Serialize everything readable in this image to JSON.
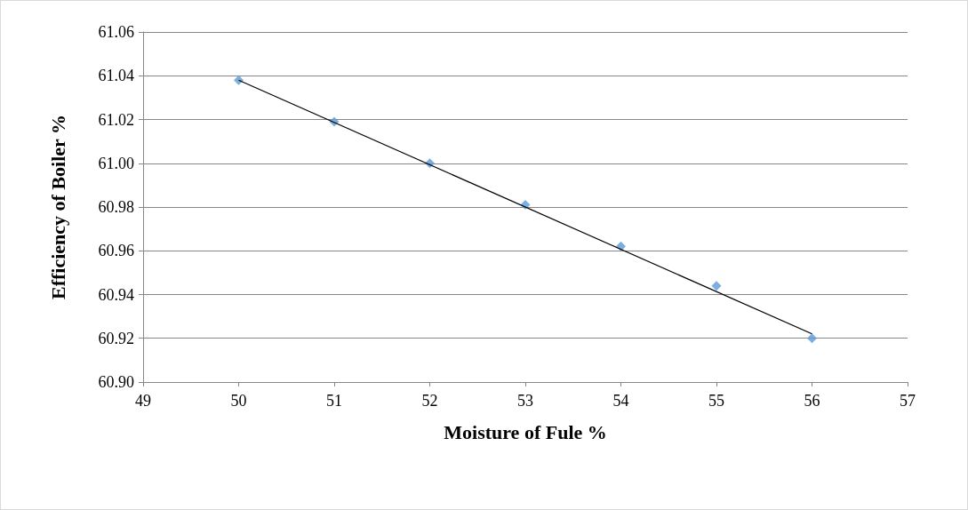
{
  "chart_data": {
    "type": "scatter",
    "xlabel": "Moisture of Fule %",
    "ylabel": "Efficiency of Boiler %",
    "x": [
      50,
      51,
      52,
      53,
      54,
      55,
      56
    ],
    "xlim": [
      49,
      57
    ],
    "xticks": [
      49,
      50,
      51,
      52,
      53,
      54,
      55,
      56,
      57
    ],
    "ylim": [
      60.9,
      61.06
    ],
    "yticks": [
      {
        "value": 60.9,
        "label": "60.90"
      },
      {
        "value": 60.92,
        "label": "60.92"
      },
      {
        "value": 60.94,
        "label": "60.94"
      },
      {
        "value": 60.96,
        "label": "60.96"
      },
      {
        "value": 60.98,
        "label": "60.98"
      },
      {
        "value": 61.0,
        "label": "61.00"
      },
      {
        "value": 61.02,
        "label": "61.02"
      },
      {
        "value": 61.04,
        "label": "61.04"
      },
      {
        "value": 61.06,
        "label": "61.06"
      }
    ],
    "grid": "y",
    "marker": "diamond",
    "series": [
      {
        "color": "#5b9bd5",
        "values": [
          61.038,
          61.019,
          61.0,
          60.981,
          60.962,
          60.944,
          60.92
        ]
      },
      {
        "type": "line",
        "color": "#000000",
        "x": [
          50,
          56
        ],
        "values": [
          61.038,
          60.922
        ],
        "marker": "none",
        "line_style": "solid"
      }
    ]
  }
}
